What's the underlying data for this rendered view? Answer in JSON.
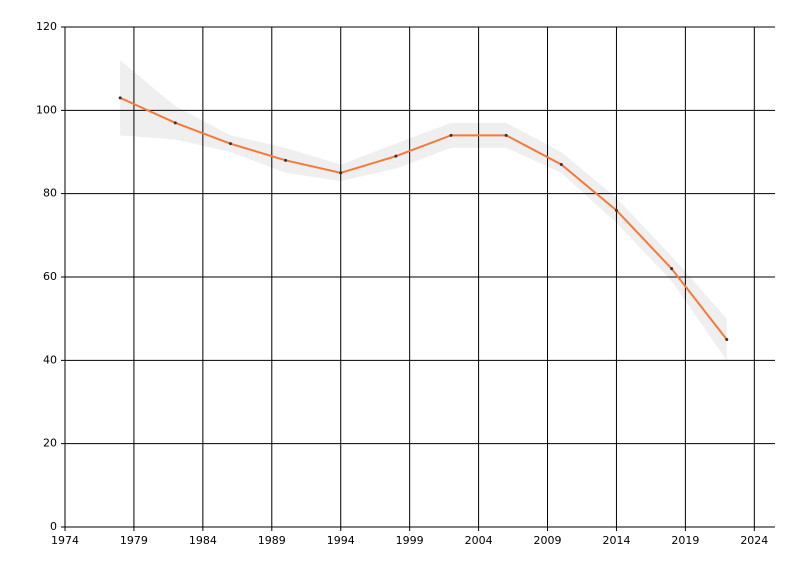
{
  "chart_data": {
    "type": "line",
    "x": [
      1978,
      1982,
      1986,
      1990,
      1994,
      1998,
      2002,
      2006,
      2010,
      2014,
      2018,
      2022
    ],
    "values": [
      103,
      97,
      92,
      88,
      85,
      89,
      94,
      94,
      87,
      76,
      62,
      45
    ],
    "band": {
      "upper": [
        112,
        101,
        94,
        91,
        87,
        92,
        97,
        97,
        90,
        79,
        65,
        50
      ],
      "lower": [
        94,
        93,
        90,
        85,
        83,
        86,
        91,
        91,
        85,
        73,
        59,
        40
      ],
      "color": "#efefef"
    },
    "color": "#f5793a",
    "xlim": [
      1974,
      2025.5
    ],
    "xticks": [
      1974,
      1979,
      1984,
      1989,
      1994,
      1999,
      2004,
      2009,
      2014,
      2019,
      2024
    ],
    "ylim": [
      0,
      120
    ],
    "yticks": [
      0,
      20,
      40,
      60,
      80,
      100,
      120
    ],
    "grid": true
  }
}
